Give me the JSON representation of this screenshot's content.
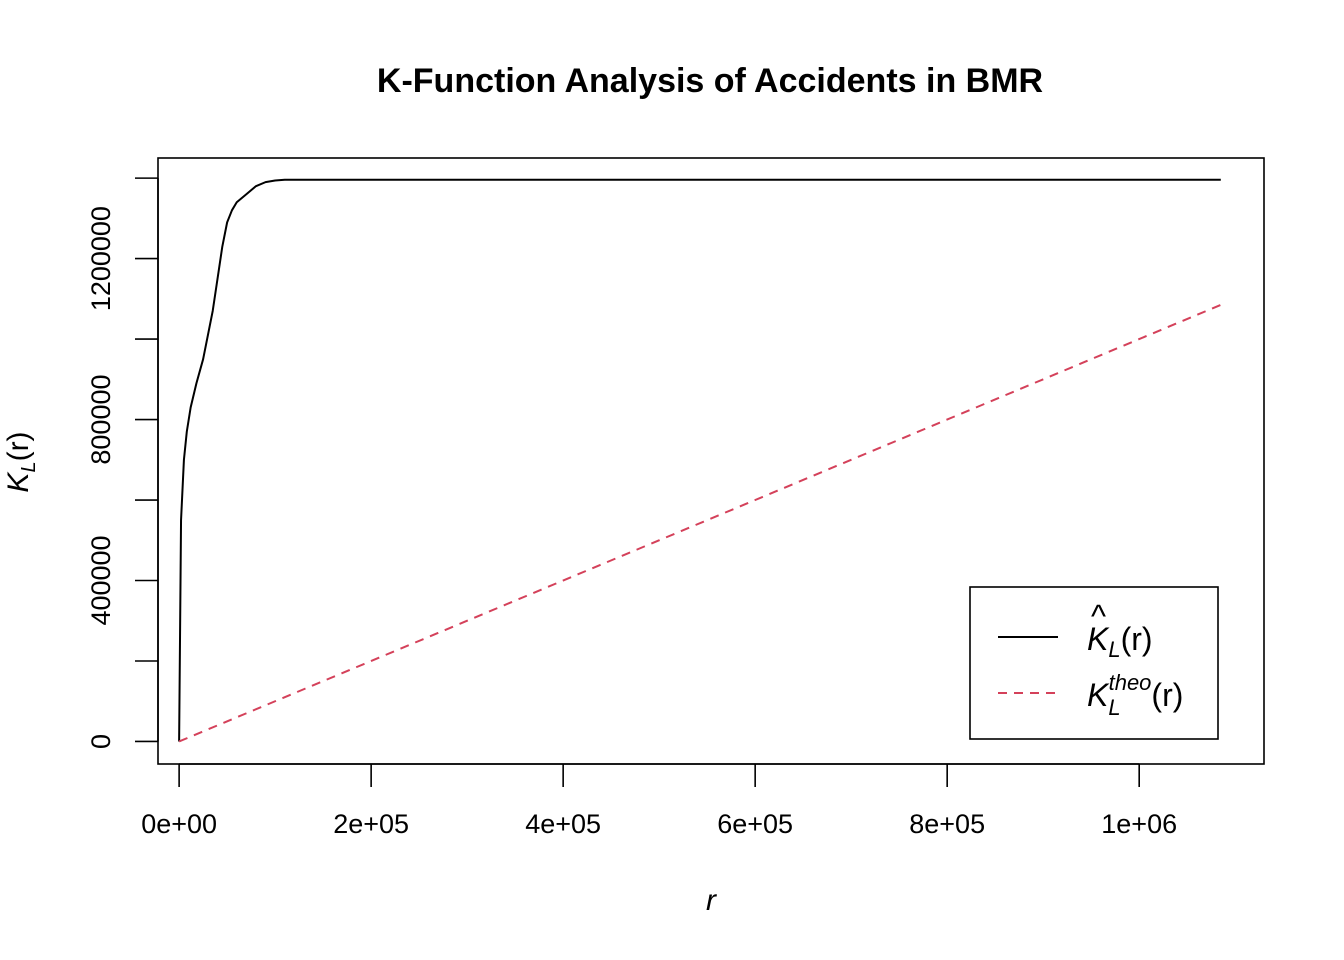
{
  "chart_data": {
    "type": "line",
    "title": "K-Function Analysis of Accidents in BMR",
    "xlabel": "r",
    "ylabel": {
      "base": "K",
      "sub": "L",
      "rest": "(r)"
    },
    "xlim": [
      -22000,
      1130000
    ],
    "ylim": [
      -56000,
      1450000
    ],
    "x_ticks": [
      {
        "value": 0,
        "label": "0e+00"
      },
      {
        "value": 200000,
        "label": "2e+05"
      },
      {
        "value": 400000,
        "label": "4e+05"
      },
      {
        "value": 600000,
        "label": "6e+05"
      },
      {
        "value": 800000,
        "label": "8e+05"
      },
      {
        "value": 1000000,
        "label": "1e+06"
      }
    ],
    "y_ticks": [
      {
        "value": 0,
        "label": "0"
      },
      {
        "value": 200000,
        "label": ""
      },
      {
        "value": 400000,
        "label": "400000"
      },
      {
        "value": 600000,
        "label": ""
      },
      {
        "value": 800000,
        "label": "800000"
      },
      {
        "value": 1000000,
        "label": ""
      },
      {
        "value": 1200000,
        "label": "1200000"
      },
      {
        "value": 1400000,
        "label": ""
      }
    ],
    "legend_position": "bottom-right",
    "series": [
      {
        "name": "K̂_L(r)",
        "color": "#000000",
        "dash": "solid",
        "x": [
          0,
          2000,
          5000,
          8000,
          12000,
          18000,
          25000,
          30000,
          35000,
          40000,
          45000,
          50000,
          55000,
          60000,
          70000,
          80000,
          90000,
          100000,
          110000,
          120000,
          1085000
        ],
        "y": [
          0,
          550000,
          700000,
          770000,
          830000,
          890000,
          950000,
          1010000,
          1070000,
          1150000,
          1230000,
          1290000,
          1320000,
          1340000,
          1360000,
          1380000,
          1390000,
          1394000,
          1396000,
          1396000,
          1396000
        ]
      },
      {
        "name": "K_L^theo(r)",
        "color": "#d4415a",
        "dash": "dashed",
        "x": [
          0,
          1085000
        ],
        "y": [
          0,
          1085000
        ]
      }
    ],
    "legend": [
      {
        "label_base": "K",
        "label_hat": "^",
        "label_sub": "L",
        "label_sup": "",
        "label_rest": "(r)"
      },
      {
        "label_base": "K",
        "label_hat": "",
        "label_sub": "L",
        "label_sup": "theo",
        "label_rest": "(r)"
      }
    ]
  }
}
